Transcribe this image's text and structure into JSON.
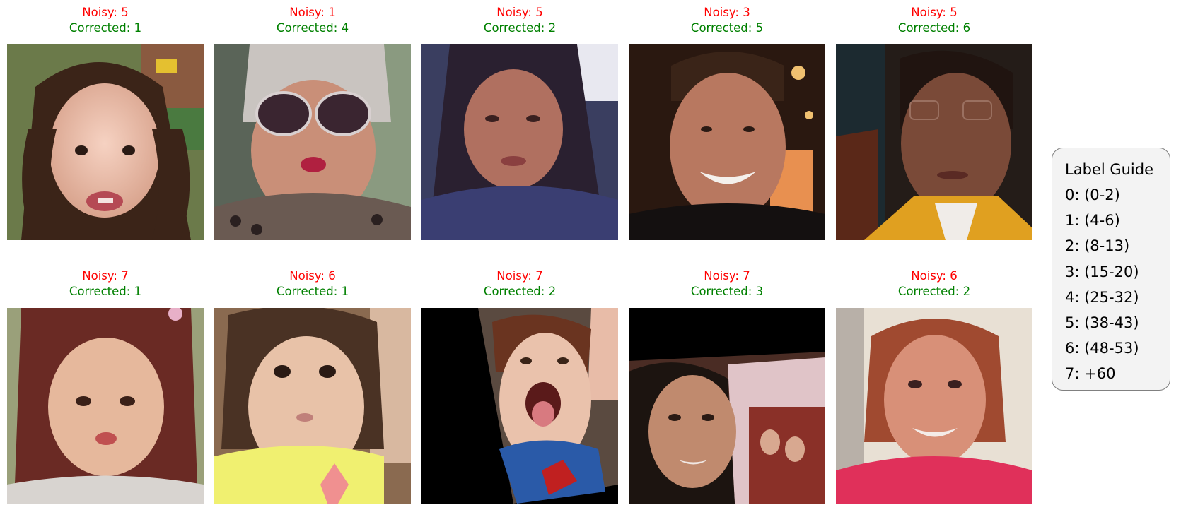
{
  "labels": {
    "noisy_prefix": "Noisy: ",
    "corrected_prefix": "Corrected: "
  },
  "colors": {
    "noisy": "#ff0000",
    "corrected": "#008000",
    "legend_background": "#f3f3f3",
    "legend_border": "#808080"
  },
  "samples": [
    {
      "noisy": "Noisy: 5",
      "corrected": "Corrected: 1"
    },
    {
      "noisy": "Noisy: 1",
      "corrected": "Corrected: 4"
    },
    {
      "noisy": "Noisy: 5",
      "corrected": "Corrected: 2"
    },
    {
      "noisy": "Noisy: 3",
      "corrected": "Corrected: 5"
    },
    {
      "noisy": "Noisy: 5",
      "corrected": "Corrected: 6"
    },
    {
      "noisy": "Noisy: 7",
      "corrected": "Corrected: 1"
    },
    {
      "noisy": "Noisy: 6",
      "corrected": "Corrected: 1"
    },
    {
      "noisy": "Noisy: 7",
      "corrected": "Corrected: 2"
    },
    {
      "noisy": "Noisy: 7",
      "corrected": "Corrected: 3"
    },
    {
      "noisy": "Noisy: 6",
      "corrected": "Corrected: 2"
    }
  ],
  "legend": {
    "title": "Label Guide",
    "items": [
      "0: (0-2)",
      "1: (4-6)",
      "2: (8-13)",
      "3: (15-20)",
      "4: (25-32)",
      "5: (38-43)",
      "6: (48-53)",
      "7: +60"
    ]
  }
}
